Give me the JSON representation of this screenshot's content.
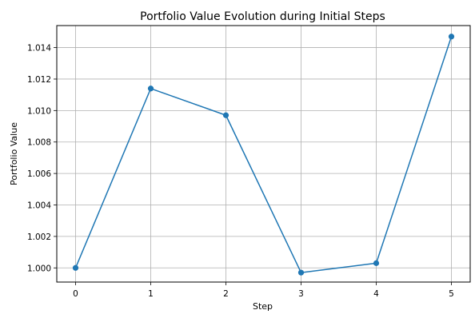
{
  "chart_data": {
    "type": "line",
    "title": "Portfolio Value Evolution during Initial Steps",
    "xlabel": "Step",
    "ylabel": "Portfolio Value",
    "x": [
      0,
      1,
      2,
      3,
      4,
      5
    ],
    "series": [
      {
        "values": [
          1.0,
          1.0114,
          1.0097,
          0.9997,
          1.0003,
          1.0147
        ],
        "color": "#1f77b4",
        "marker": "circle"
      }
    ],
    "xlim": [
      -0.25,
      5.25
    ],
    "ylim": [
      0.9991,
      1.0154
    ],
    "x_ticks": [
      0,
      1,
      2,
      3,
      4,
      5
    ],
    "x_tick_labels": [
      "0",
      "1",
      "2",
      "3",
      "4",
      "5"
    ],
    "y_ticks": [
      1.0,
      1.002,
      1.004,
      1.006,
      1.008,
      1.01,
      1.012,
      1.014
    ],
    "y_tick_labels": [
      "1.000",
      "1.002",
      "1.004",
      "1.006",
      "1.008",
      "1.010",
      "1.012",
      "1.014"
    ],
    "grid": true,
    "legend": "none"
  }
}
